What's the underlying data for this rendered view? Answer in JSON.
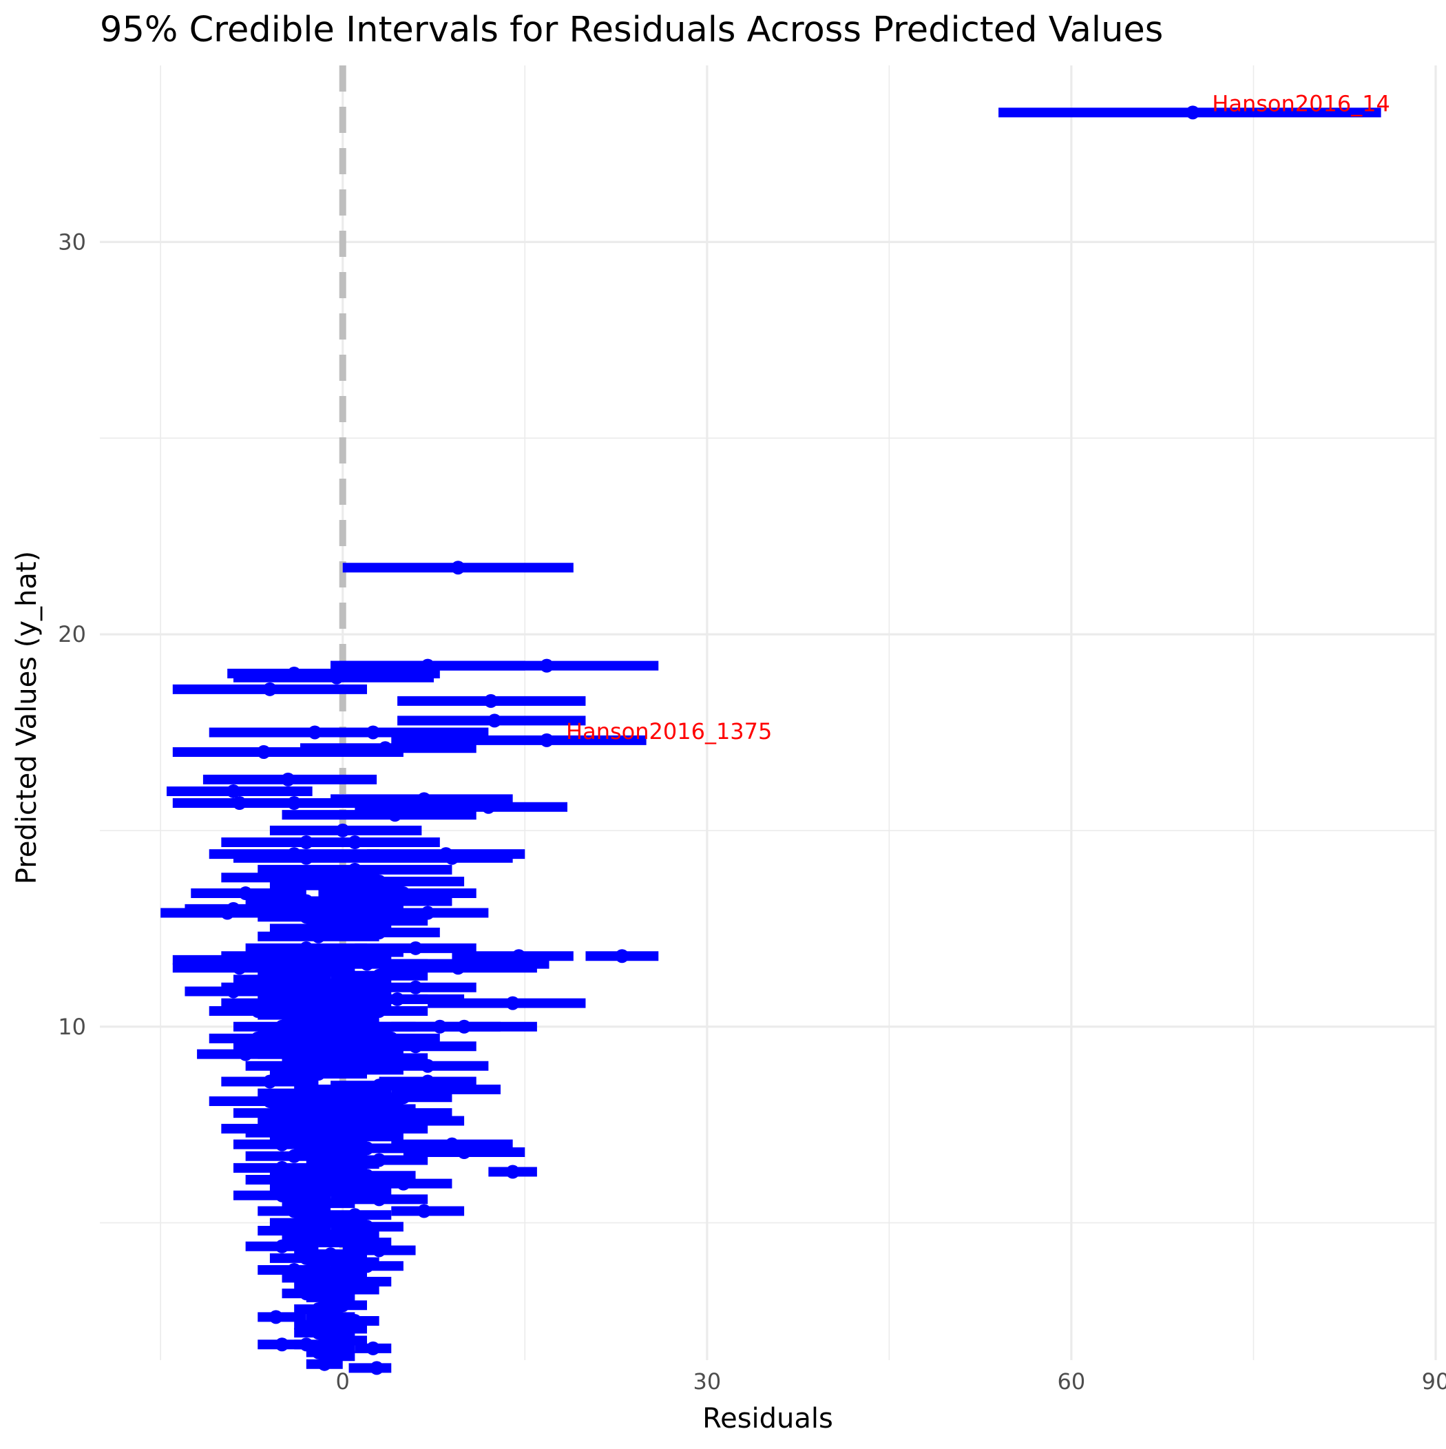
{
  "chart_data": {
    "type": "errorbar",
    "title": "95% Credible Intervals for Residuals Across Predicted Values",
    "xlabel": "Residuals",
    "ylabel": "Predicted Values (y_hat)",
    "xlim": [
      -20,
      90
    ],
    "ylim": [
      1.5,
      34.5
    ],
    "x_ticks": [
      0,
      30,
      60,
      90
    ],
    "y_ticks": [
      10,
      20,
      30
    ],
    "grid": true,
    "reference_line": {
      "x": 0,
      "style": "dashed",
      "color": "#bebebe"
    },
    "colors": {
      "interval": "#0000ff",
      "label": "#ff0000",
      "grid": "#ebebeb"
    },
    "labeled_points": [
      {
        "label": "Hanson2016_14",
        "x": 70,
        "y": 33.3,
        "lo": 54,
        "hi": 85.5
      },
      {
        "label": "Hanson2016_1375",
        "x": 16.8,
        "y": 17.3,
        "lo": 4,
        "hi": 25
      }
    ],
    "points": [
      [
        9.5,
        21.7,
        0,
        19
      ],
      [
        16.8,
        19.2,
        -1,
        26
      ],
      [
        7,
        19.2,
        -1,
        15
      ],
      [
        -4,
        19,
        -9.5,
        8
      ],
      [
        -0.5,
        18.9,
        -9,
        7.5
      ],
      [
        -6,
        18.6,
        -14,
        2
      ],
      [
        12.2,
        18.3,
        4.5,
        20
      ],
      [
        12.5,
        17.8,
        4.5,
        20
      ],
      [
        2.5,
        17.5,
        -10.5,
        11
      ],
      [
        -2.3,
        17.5,
        -11,
        12
      ],
      [
        3.5,
        17.1,
        -3.5,
        11
      ],
      [
        -6.5,
        17,
        -14,
        5
      ],
      [
        -4.5,
        16.3,
        -11.5,
        2.8
      ],
      [
        -9,
        16,
        -14.5,
        -2.5
      ],
      [
        6.7,
        15.8,
        -1,
        14
      ],
      [
        12,
        15.6,
        1,
        18.5
      ],
      [
        4.3,
        15.4,
        -5,
        11
      ],
      [
        -4,
        15.7,
        -10.5,
        2
      ],
      [
        -8.5,
        15.7,
        -14,
        -2
      ],
      [
        0,
        15,
        -6,
        6.5
      ],
      [
        -3,
        14.7,
        -10,
        2
      ],
      [
        1,
        14.7,
        -5,
        8
      ],
      [
        8.5,
        14.4,
        2,
        15
      ],
      [
        -4,
        14.4,
        -11,
        3
      ],
      [
        -3,
        14.3,
        -9,
        2
      ],
      [
        9,
        14.3,
        2,
        14
      ],
      [
        1,
        14,
        -7,
        9
      ],
      [
        -4,
        13.8,
        -10,
        3
      ],
      [
        0.5,
        13.7,
        -5,
        7
      ],
      [
        -1,
        13.6,
        -6,
        5
      ],
      [
        3,
        13.7,
        -3,
        10
      ],
      [
        -8,
        13.4,
        -12.5,
        -3
      ],
      [
        5,
        13.4,
        -2,
        11
      ],
      [
        -3,
        13.2,
        -8,
        3
      ],
      [
        2,
        13.2,
        -4,
        9
      ],
      [
        -9,
        13,
        -13,
        -4
      ],
      [
        -1,
        13,
        -6,
        5
      ],
      [
        -9.5,
        12.9,
        -15,
        -3
      ],
      [
        7,
        12.9,
        1,
        12
      ],
      [
        -3,
        12.8,
        -7,
        2
      ],
      [
        2,
        12.7,
        -3,
        7
      ],
      [
        -1,
        12.5,
        -6,
        4
      ],
      [
        -2,
        12.3,
        -7,
        3
      ],
      [
        3,
        12.4,
        -2,
        8
      ],
      [
        6,
        12,
        1,
        11
      ],
      [
        -3,
        12,
        -8,
        2
      ],
      [
        0,
        11.9,
        -5,
        5
      ],
      [
        -6,
        11.8,
        -10,
        -2
      ],
      [
        -1,
        11.7,
        -4,
        4
      ],
      [
        -9,
        11.7,
        -14,
        -4
      ],
      [
        14.5,
        11.8,
        9,
        19
      ],
      [
        -1,
        11.6,
        -5,
        4
      ],
      [
        2,
        11.6,
        -3,
        7
      ],
      [
        10,
        11.6,
        3,
        17
      ],
      [
        23,
        11.8,
        20,
        26
      ],
      [
        -8.5,
        11.5,
        -14,
        -3
      ],
      [
        -3,
        11.4,
        -7,
        1
      ],
      [
        3,
        11.3,
        -1,
        7
      ],
      [
        9.5,
        11.5,
        3,
        16
      ],
      [
        0,
        11.1,
        -4,
        4
      ],
      [
        -5,
        11.2,
        -9,
        -1
      ],
      [
        -5.5,
        11,
        -10,
        -1
      ],
      [
        6,
        11,
        1,
        11
      ],
      [
        -9,
        10.9,
        -13,
        -5
      ],
      [
        -2,
        10.9,
        -6,
        2
      ],
      [
        -1,
        10.8,
        -6,
        4
      ],
      [
        -3,
        10.7,
        -7,
        1
      ],
      [
        2,
        10.7,
        -3,
        7
      ],
      [
        4.5,
        10.7,
        -1,
        10
      ],
      [
        14,
        10.6,
        7,
        20
      ],
      [
        -6,
        10.6,
        -10,
        -2
      ],
      [
        0,
        10.5,
        -4,
        4
      ],
      [
        -7,
        10.4,
        -11,
        -3
      ],
      [
        3,
        10.4,
        -1,
        7
      ],
      [
        -3,
        10.3,
        -7,
        1
      ],
      [
        -1,
        10.2,
        -5,
        3
      ],
      [
        8,
        10,
        3,
        13
      ],
      [
        10,
        10,
        4,
        16
      ],
      [
        -5,
        10,
        -9,
        -1
      ],
      [
        2,
        10,
        -2,
        6
      ],
      [
        -3,
        9.9,
        -7,
        1
      ],
      [
        0,
        9.8,
        -4,
        4
      ],
      [
        -7,
        9.7,
        -11,
        -3
      ],
      [
        4,
        9.7,
        0,
        8
      ],
      [
        -2,
        9.6,
        -6,
        2
      ],
      [
        6,
        9.5,
        1,
        11
      ],
      [
        -5,
        9.5,
        -9,
        -1
      ],
      [
        1,
        9.4,
        -3,
        5
      ],
      [
        -3,
        9.3,
        -7,
        1
      ],
      [
        -8,
        9.3,
        -12,
        -4
      ],
      [
        3,
        9.2,
        -1,
        7
      ],
      [
        -1,
        9.1,
        -5,
        3
      ],
      [
        7,
        9,
        2,
        12
      ],
      [
        -4,
        9,
        -8,
        0
      ],
      [
        1,
        8.9,
        -3,
        5
      ],
      [
        -2,
        8.8,
        -6,
        2
      ],
      [
        7,
        8.6,
        3,
        11
      ],
      [
        -6,
        8.6,
        -10,
        -2
      ],
      [
        3,
        8.5,
        -1,
        7
      ],
      [
        0,
        8.4,
        -4,
        4
      ],
      [
        8.5,
        8.4,
        4,
        13
      ],
      [
        -3,
        8.3,
        -7,
        1
      ],
      [
        5,
        8.2,
        1,
        9
      ],
      [
        -6,
        8.1,
        -11,
        -1
      ],
      [
        1,
        8.1,
        -3,
        5
      ],
      [
        -2,
        8,
        -6,
        2
      ],
      [
        2,
        7.9,
        -2,
        6
      ],
      [
        -5,
        7.8,
        -9,
        -1
      ],
      [
        5,
        7.8,
        1,
        9
      ],
      [
        0,
        7.7,
        -3,
        3
      ],
      [
        -3,
        7.6,
        -7,
        1
      ],
      [
        6,
        7.6,
        2,
        10
      ],
      [
        -1,
        7.5,
        -5,
        3
      ],
      [
        -6,
        7.4,
        -10,
        -2
      ],
      [
        3,
        7.4,
        -1,
        7
      ],
      [
        -4,
        7.3,
        -8,
        0
      ],
      [
        1,
        7.2,
        -3,
        5
      ],
      [
        -2,
        7.1,
        -6,
        2
      ],
      [
        9,
        7,
        4,
        14
      ],
      [
        -5,
        7,
        -9,
        -1
      ],
      [
        2,
        6.9,
        -2,
        6
      ],
      [
        -1,
        6.8,
        -4,
        2
      ],
      [
        10,
        6.8,
        5,
        15
      ],
      [
        -4,
        6.7,
        -8,
        0
      ],
      [
        3,
        6.6,
        -1,
        7
      ],
      [
        0,
        6.5,
        -3,
        3
      ],
      [
        -5,
        6.4,
        -9,
        -1
      ],
      [
        14,
        6.3,
        12,
        16
      ],
      [
        -2,
        6.3,
        -6,
        2
      ],
      [
        2,
        6.2,
        -2,
        6
      ],
      [
        -4,
        6.1,
        -8,
        0
      ],
      [
        5,
        6,
        1,
        9
      ],
      [
        0,
        6,
        -3,
        3
      ],
      [
        -3,
        5.9,
        -6,
        0
      ],
      [
        1,
        5.8,
        -2,
        4
      ],
      [
        -5,
        5.7,
        -9,
        -1
      ],
      [
        3,
        5.6,
        -1,
        7
      ],
      [
        -2,
        5.5,
        -5,
        1
      ],
      [
        6.7,
        5.3,
        4,
        10
      ],
      [
        -4,
        5.3,
        -7,
        -1
      ],
      [
        1,
        5.2,
        -2,
        4
      ],
      [
        -1,
        5.1,
        -4,
        2
      ],
      [
        -3,
        5,
        -6,
        0
      ],
      [
        2,
        4.9,
        -1,
        5
      ],
      [
        -4,
        4.8,
        -7,
        -1
      ],
      [
        0,
        4.7,
        -3,
        3
      ],
      [
        -2,
        4.6,
        -5,
        1
      ],
      [
        1,
        4.5,
        -2,
        4
      ],
      [
        -5,
        4.4,
        -8,
        -2
      ],
      [
        3,
        4.3,
        0,
        6
      ],
      [
        -1,
        4.2,
        -4,
        2
      ],
      [
        -3,
        4.1,
        -6,
        0
      ],
      [
        0,
        4,
        -3,
        3
      ],
      [
        2,
        3.9,
        -1,
        5
      ],
      [
        -4,
        3.8,
        -7,
        -1
      ],
      [
        -1,
        3.7,
        -4,
        2
      ],
      [
        -3,
        3.6,
        -5,
        -1
      ],
      [
        1,
        3.5,
        -2,
        4
      ],
      [
        -2,
        3.4,
        -4,
        0
      ],
      [
        0,
        3.3,
        -3,
        3
      ],
      [
        -3,
        3.2,
        -5,
        -1
      ],
      [
        -1,
        3.1,
        -3,
        1
      ],
      [
        0,
        2.9,
        -2,
        2
      ],
      [
        -2,
        2.8,
        -4,
        0
      ],
      [
        -1,
        2.6,
        -3,
        1
      ],
      [
        1,
        2.5,
        -1,
        3
      ],
      [
        0,
        2.3,
        -2,
        2
      ],
      [
        -2,
        2.2,
        -4,
        0
      ],
      [
        -1,
        2.1,
        -2,
        1
      ],
      [
        0,
        2,
        -2,
        2
      ],
      [
        -3,
        1.9,
        -4,
        -1
      ],
      [
        -1,
        1.8,
        -2,
        1
      ],
      [
        -2,
        1.7,
        -3,
        0
      ],
      [
        -0.5,
        1.6,
        -2,
        1
      ],
      [
        2.5,
        1.8,
        1,
        4
      ],
      [
        -1.5,
        1.4,
        -3,
        0
      ],
      [
        2.8,
        1.3,
        0.5,
        4
      ],
      [
        -5,
        1.9,
        -7,
        -3
      ],
      [
        -5.5,
        2.6,
        -7,
        -3
      ],
      [
        -2,
        2.4,
        -4,
        0
      ]
    ]
  }
}
